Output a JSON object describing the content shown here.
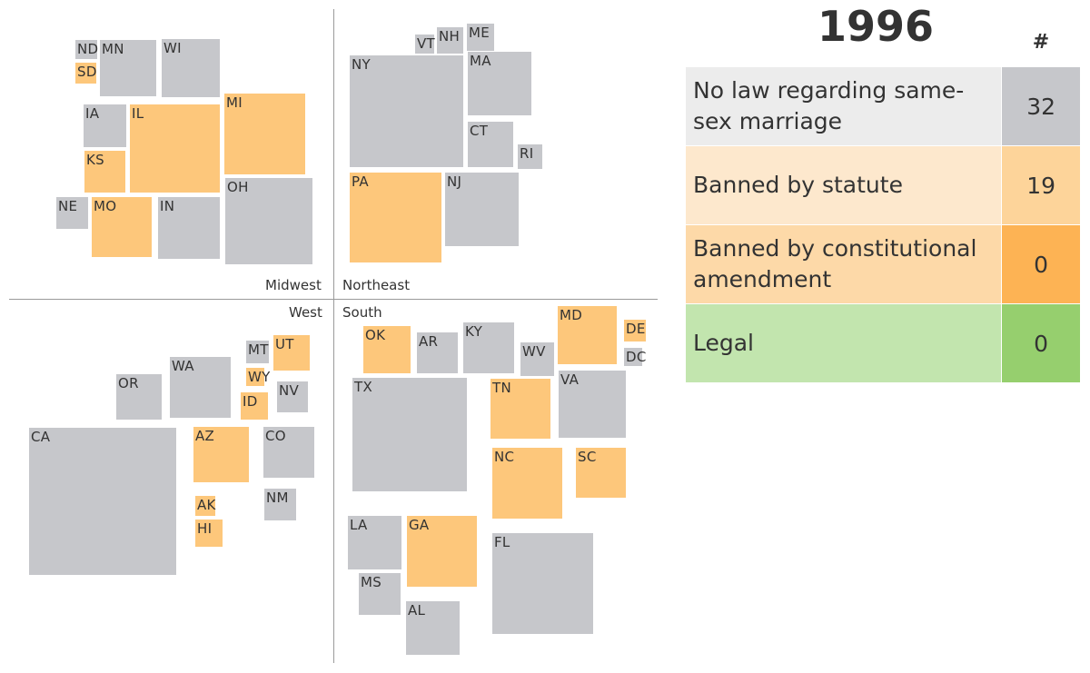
{
  "year": "1996",
  "count_header": "#",
  "colors": {
    "none": "#c6c7cb",
    "statute": "#fdc77b",
    "amendment": "#fdb354",
    "legal": "#96cf6e"
  },
  "legend": [
    {
      "label": "No law regarding same-sex marriage",
      "count": "32",
      "bg": "#ececec",
      "count_bg": "#c6c7cb"
    },
    {
      "label": "Banned by statute",
      "count": "19",
      "bg": "#fde8cd",
      "count_bg": "#fdd49a"
    },
    {
      "label": "Banned by constitutional amendment",
      "count": "0",
      "bg": "#fdd9a8",
      "count_bg": "#fdb354"
    },
    {
      "label": "Legal",
      "count": "0",
      "bg": "#c2e5ae",
      "count_bg": "#96cf6e"
    }
  ],
  "regions": {
    "midwest": "Midwest",
    "northeast": "Northeast",
    "west": "West",
    "south": "South"
  },
  "chart_data": {
    "type": "table",
    "title": "1996",
    "states": [
      {
        "state": "ND",
        "status": "none"
      },
      {
        "state": "MN",
        "status": "none"
      },
      {
        "state": "WI",
        "status": "none"
      },
      {
        "state": "SD",
        "status": "statute"
      },
      {
        "state": "IA",
        "status": "none"
      },
      {
        "state": "IL",
        "status": "statute"
      },
      {
        "state": "MI",
        "status": "statute"
      },
      {
        "state": "KS",
        "status": "statute"
      },
      {
        "state": "NE",
        "status": "none"
      },
      {
        "state": "MO",
        "status": "statute"
      },
      {
        "state": "IN",
        "status": "none"
      },
      {
        "state": "OH",
        "status": "none"
      },
      {
        "state": "VT",
        "status": "none"
      },
      {
        "state": "NH",
        "status": "none"
      },
      {
        "state": "ME",
        "status": "none"
      },
      {
        "state": "NY",
        "status": "none"
      },
      {
        "state": "MA",
        "status": "none"
      },
      {
        "state": "CT",
        "status": "none"
      },
      {
        "state": "RI",
        "status": "none"
      },
      {
        "state": "PA",
        "status": "statute"
      },
      {
        "state": "NJ",
        "status": "none"
      },
      {
        "state": "OR",
        "status": "none"
      },
      {
        "state": "WA",
        "status": "none"
      },
      {
        "state": "MT",
        "status": "none"
      },
      {
        "state": "UT",
        "status": "statute"
      },
      {
        "state": "WY",
        "status": "statute"
      },
      {
        "state": "ID",
        "status": "statute"
      },
      {
        "state": "NV",
        "status": "none"
      },
      {
        "state": "CA",
        "status": "none"
      },
      {
        "state": "AZ",
        "status": "statute"
      },
      {
        "state": "CO",
        "status": "none"
      },
      {
        "state": "NM",
        "status": "none"
      },
      {
        "state": "AK",
        "status": "statute"
      },
      {
        "state": "HI",
        "status": "statute"
      },
      {
        "state": "OK",
        "status": "statute"
      },
      {
        "state": "AR",
        "status": "none"
      },
      {
        "state": "KY",
        "status": "none"
      },
      {
        "state": "WV",
        "status": "none"
      },
      {
        "state": "MD",
        "status": "statute"
      },
      {
        "state": "DE",
        "status": "statute"
      },
      {
        "state": "DC",
        "status": "none"
      },
      {
        "state": "TX",
        "status": "none"
      },
      {
        "state": "TN",
        "status": "statute"
      },
      {
        "state": "VA",
        "status": "none"
      },
      {
        "state": "NC",
        "status": "statute"
      },
      {
        "state": "SC",
        "status": "statute"
      },
      {
        "state": "LA",
        "status": "none"
      },
      {
        "state": "GA",
        "status": "statute"
      },
      {
        "state": "FL",
        "status": "none"
      },
      {
        "state": "MS",
        "status": "none"
      },
      {
        "state": "AL",
        "status": "none"
      }
    ]
  }
}
